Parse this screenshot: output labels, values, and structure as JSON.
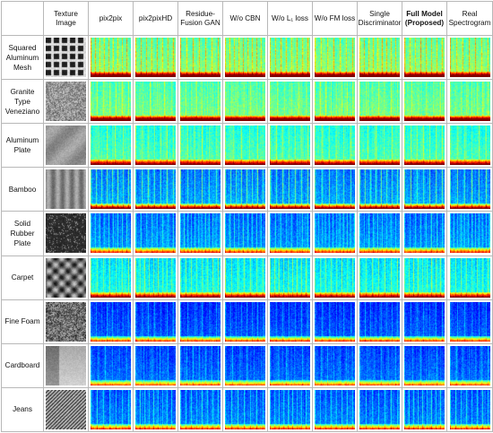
{
  "columns": [
    {
      "label": "Texture\nImage",
      "bold": false
    },
    {
      "label": "pix2pix",
      "bold": false
    },
    {
      "label": "pix2pixHD",
      "bold": false
    },
    {
      "label": "Residue-\nFusion GAN",
      "bold": false
    },
    {
      "label": "W/o CBN",
      "bold": false
    },
    {
      "label": "W/o L₁ loss",
      "bold": false
    },
    {
      "label": "W/o FM loss",
      "bold": false
    },
    {
      "label": "Single\nDiscriminator",
      "bold": false
    },
    {
      "label": "Full Model\n(Proposed)",
      "bold": true
    },
    {
      "label": "Real\nSpectrogram",
      "bold": false
    }
  ],
  "rows": [
    {
      "label": "Squared\nAluminum\nMesh",
      "texture": "mesh"
    },
    {
      "label": "Granite\nType\nVeneziano",
      "texture": "granite"
    },
    {
      "label": "Aluminum\nPlate",
      "texture": "plate"
    },
    {
      "label": "Bamboo",
      "texture": "bamboo"
    },
    {
      "label": "Solid\nRubber\nPlate",
      "texture": "rubber"
    },
    {
      "label": "Carpet",
      "texture": "carpet"
    },
    {
      "label": "Fine Foam",
      "texture": "foam"
    },
    {
      "label": "Cardboard",
      "texture": "cardboard"
    },
    {
      "label": "Jeans",
      "texture": "jeans"
    }
  ]
}
